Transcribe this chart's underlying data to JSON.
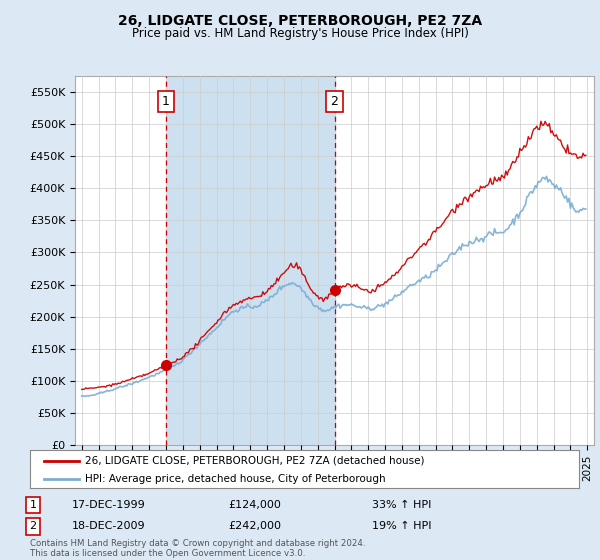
{
  "title": "26, LIDGATE CLOSE, PETERBOROUGH, PE2 7ZA",
  "subtitle": "Price paid vs. HM Land Registry's House Price Index (HPI)",
  "footer": "Contains HM Land Registry data © Crown copyright and database right 2024.\nThis data is licensed under the Open Government Licence v3.0.",
  "legend_line1": "26, LIDGATE CLOSE, PETERBOROUGH, PE2 7ZA (detached house)",
  "legend_line2": "HPI: Average price, detached house, City of Peterborough",
  "sale1_label": "1",
  "sale1_date": "17-DEC-1999",
  "sale1_price": "£124,000",
  "sale1_hpi": "33% ↑ HPI",
  "sale2_label": "2",
  "sale2_date": "18-DEC-2009",
  "sale2_price": "£242,000",
  "sale2_hpi": "19% ↑ HPI",
  "ylim": [
    0,
    575000
  ],
  "yticks": [
    0,
    50000,
    100000,
    150000,
    200000,
    250000,
    300000,
    350000,
    400000,
    450000,
    500000,
    550000
  ],
  "ytick_labels": [
    "£0",
    "£50K",
    "£100K",
    "£150K",
    "£200K",
    "£250K",
    "£300K",
    "£350K",
    "£400K",
    "£450K",
    "£500K",
    "£550K"
  ],
  "bg_color": "#dce9f5",
  "plot_bg": "#ffffff",
  "shade_color": "#cde0f0",
  "red_color": "#cc0000",
  "blue_color": "#7aadd4",
  "vline_color": "#cc0000",
  "sale1_x": 2000.0,
  "sale2_x": 2010.0,
  "sale1_y": 124000,
  "sale2_y": 242000,
  "xlim_left": 1994.6,
  "xlim_right": 2025.4,
  "xtick_years": [
    1995,
    1996,
    1997,
    1998,
    1999,
    2000,
    2001,
    2002,
    2003,
    2004,
    2005,
    2006,
    2007,
    2008,
    2009,
    2010,
    2011,
    2012,
    2013,
    2014,
    2015,
    2016,
    2017,
    2018,
    2019,
    2020,
    2021,
    2022,
    2023,
    2024,
    2025
  ]
}
